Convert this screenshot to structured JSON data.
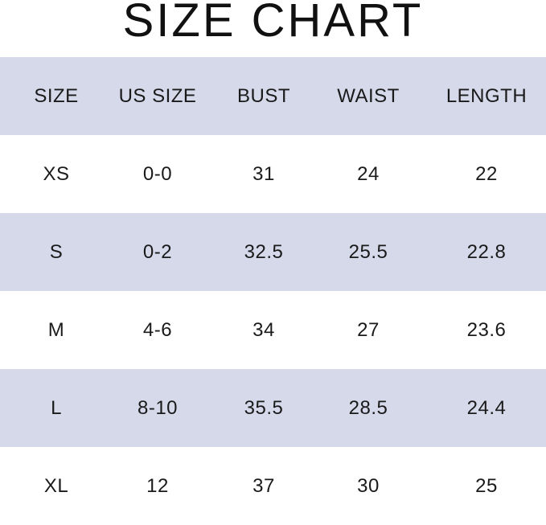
{
  "title": "SIZE CHART",
  "band_color": "#d5d9ea",
  "headers": [
    "SIZE",
    "US SIZE",
    "BUST",
    "WAIST",
    "LENGTH"
  ],
  "rows": [
    [
      "XS",
      "0-0",
      "31",
      "24",
      "22"
    ],
    [
      "S",
      "0-2",
      "32.5",
      "25.5",
      "22.8"
    ],
    [
      "M",
      "4-6",
      "34",
      "27",
      "23.6"
    ],
    [
      "L",
      "8-10",
      "35.5",
      "28.5",
      "24.4"
    ],
    [
      "XL",
      "12",
      "37",
      "30",
      "25"
    ]
  ]
}
